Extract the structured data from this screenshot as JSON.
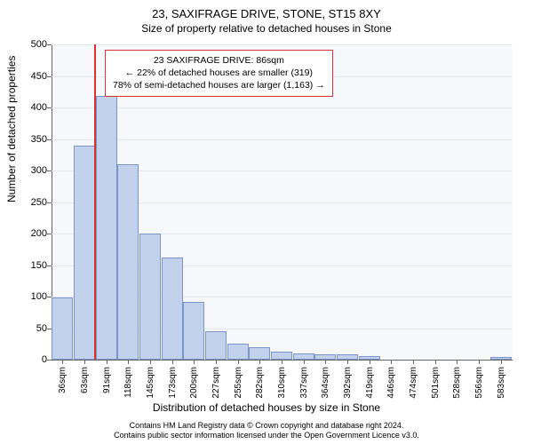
{
  "title": "23, SAXIFRAGE DRIVE, STONE, ST15 8XY",
  "subtitle": "Size of property relative to detached houses in Stone",
  "ylabel": "Number of detached properties",
  "xlabel": "Distribution of detached houses by size in Stone",
  "footer_line1": "Contains HM Land Registry data © Crown copyright and database right 2024.",
  "footer_line2": "Contains public sector information licensed under the Open Government Licence v3.0.",
  "chart": {
    "type": "bar",
    "background_color": "#f6f8fc",
    "grid_color": "#e4e8f0",
    "axis_color": "#666666",
    "bar_fill": "#c2d2ec",
    "bar_border": "#7a95c9",
    "marker_line_color": "#d93030",
    "ylim": [
      0,
      500
    ],
    "ytick_step": 50,
    "x_categories": [
      "36sqm",
      "63sqm",
      "91sqm",
      "118sqm",
      "145sqm",
      "173sqm",
      "200sqm",
      "227sqm",
      "255sqm",
      "282sqm",
      "310sqm",
      "337sqm",
      "364sqm",
      "392sqm",
      "419sqm",
      "446sqm",
      "474sqm",
      "501sqm",
      "528sqm",
      "556sqm",
      "583sqm"
    ],
    "values": [
      98,
      340,
      418,
      310,
      200,
      162,
      92,
      45,
      25,
      20,
      12,
      10,
      8,
      8,
      5,
      0,
      0,
      0,
      0,
      0,
      4
    ],
    "marker_category_index_after": 1.95,
    "info_box": {
      "line1": "23 SAXIFRAGE DRIVE: 86sqm",
      "line2": "← 22% of detached houses are smaller (319)",
      "line3": "78% of semi-detached houses are larger (1,163) →"
    },
    "font_size_title": 13,
    "font_size_subtitle": 12,
    "font_size_axis_label": 12,
    "font_size_tick": 11
  }
}
